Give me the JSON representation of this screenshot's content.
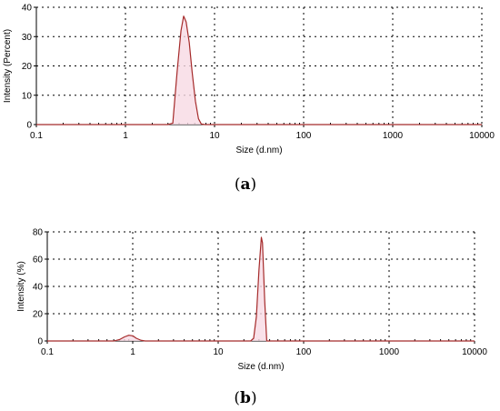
{
  "chart_data": [
    {
      "type": "line",
      "caption_letter": "a",
      "xlabel": "Size (d.nm)",
      "ylabel": "Intensity (Percent)",
      "xscale": "log",
      "xlim": [
        0.1,
        10000
      ],
      "ylim": [
        0,
        40
      ],
      "xticks": [
        "0.1",
        "1",
        "10",
        "100",
        "1000",
        "10000"
      ],
      "yticks": [
        "0",
        "10",
        "20",
        "30",
        "40"
      ],
      "grid": true,
      "line_color": "#a52a2a",
      "fill_color": "#f7d9e3",
      "series": [
        {
          "x": [
            0.1,
            1,
            3.0,
            3.4,
            3.8,
            4.2,
            4.5,
            4.8,
            5.2,
            5.6,
            6.1,
            6.6,
            7.1,
            7.8,
            10000
          ],
          "y": [
            0,
            0,
            0,
            0.5,
            18,
            32,
            37,
            35,
            28,
            18,
            8,
            2,
            0.2,
            0,
            0
          ]
        }
      ]
    },
    {
      "type": "line",
      "caption_letter": "b",
      "xlabel": "Size (d.nm)",
      "ylabel": "Intensity (%)",
      "xscale": "log",
      "xlim": [
        0.1,
        10000
      ],
      "ylim": [
        0,
        80
      ],
      "xticks": [
        "0.1",
        "1",
        "10",
        "100",
        "1000",
        "10000"
      ],
      "yticks": [
        "0",
        "20",
        "40",
        "60",
        "80"
      ],
      "grid": true,
      "line_color": "#a52a2a",
      "fill_color": "#f7d9e3",
      "series": [
        {
          "x": [
            0.1,
            0.6,
            0.7,
            0.8,
            0.9,
            1.0,
            1.1,
            1.25,
            1.4,
            24,
            26,
            28,
            30,
            32,
            33,
            35,
            37,
            10000
          ],
          "y": [
            0,
            0,
            1.0,
            3.0,
            4.2,
            3.8,
            2.0,
            0.5,
            0,
            0,
            2,
            18,
            52,
            76,
            72,
            30,
            0,
            0
          ]
        }
      ]
    }
  ],
  "captions": {
    "a": "(a)",
    "b": "(b)"
  }
}
